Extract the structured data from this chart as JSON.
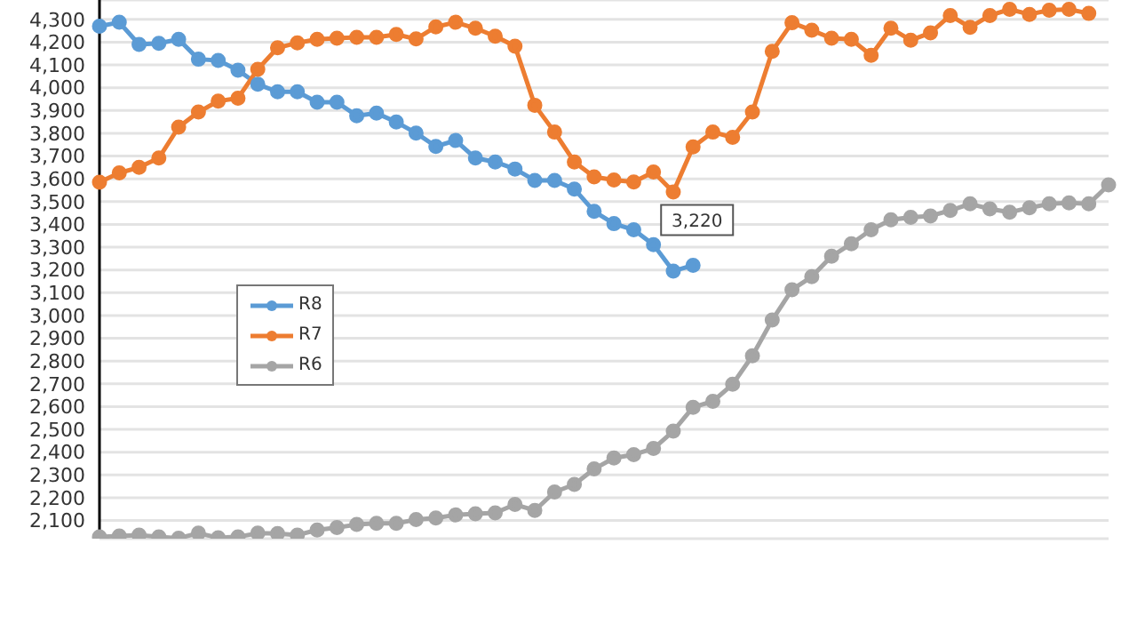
{
  "chart_data": {
    "type": "line",
    "categories": [
      null,
      null,
      null,
      null,
      null,
      null,
      null,
      null,
      null,
      null,
      null,
      null,
      null,
      null,
      null,
      null,
      null,
      null,
      null,
      null,
      null,
      null,
      null,
      null,
      null,
      null,
      null,
      null,
      null,
      null,
      null,
      null,
      null,
      null,
      null,
      null,
      null,
      null,
      null,
      null,
      null,
      null,
      null,
      null,
      null,
      null,
      null,
      null,
      null,
      null,
      null,
      null
    ],
    "series": [
      {
        "name": "R8",
        "color": "#5b9bd5",
        "values": [
          4270,
          4287,
          4190,
          4195,
          4212,
          4125,
          4120,
          4077,
          4015,
          3982,
          3982,
          3936,
          3936,
          3877,
          3888,
          3849,
          3801,
          3742,
          3768,
          3691,
          3674,
          3643,
          3593,
          3593,
          3555,
          3457,
          3403,
          3376,
          3311,
          3195,
          3220,
          null,
          null,
          null,
          null,
          null,
          null,
          null,
          null,
          null,
          null,
          null,
          null,
          null,
          null,
          null,
          null,
          null,
          null,
          null,
          null,
          null
        ]
      },
      {
        "name": "R7",
        "color": "#ed7d31",
        "values": [
          3585,
          3626,
          3650,
          3691,
          3827,
          3893,
          3941,
          3954,
          4081,
          4175,
          4197,
          4212,
          4217,
          4221,
          4221,
          4234,
          4214,
          4267,
          4287,
          4261,
          4226,
          4182,
          3923,
          3805,
          3674,
          3608,
          3595,
          3586,
          3630,
          3542,
          3740,
          3805,
          3782,
          3893,
          4160,
          4285,
          4252,
          4217,
          4212,
          4142,
          4261,
          4208,
          4241,
          4317,
          4265,
          4317,
          4344,
          4322,
          4340,
          4344,
          4326,
          null
        ]
      },
      {
        "name": "R6",
        "color": "#a5a5a5",
        "values": [
          2028,
          2032,
          2036,
          2028,
          2022,
          2044,
          2024,
          2028,
          2044,
          2042,
          2036,
          2058,
          2069,
          2082,
          2087,
          2087,
          2104,
          2111,
          2124,
          2129,
          2133,
          2170,
          2144,
          2225,
          2258,
          2326,
          2374,
          2389,
          2416,
          2492,
          2597,
          2623,
          2698,
          2823,
          2980,
          3113,
          3170,
          3260,
          3315,
          3376,
          3420,
          3431,
          3437,
          3461,
          3490,
          3468,
          3453,
          3473,
          3490,
          3494,
          3490,
          3573
        ]
      }
    ],
    "ylim": [
      2020,
      4385
    ],
    "yticks": [
      {
        "value": 2100,
        "label": "2,100"
      },
      {
        "value": 2200,
        "label": "2,200"
      },
      {
        "value": 2300,
        "label": "2,300"
      },
      {
        "value": 2400,
        "label": "2,400"
      },
      {
        "value": 2500,
        "label": "2,500"
      },
      {
        "value": 2600,
        "label": "2,600"
      },
      {
        "value": 2700,
        "label": "2,700"
      },
      {
        "value": 2800,
        "label": "2,800"
      },
      {
        "value": 2900,
        "label": "2,900"
      },
      {
        "value": 3000,
        "label": "3,000"
      },
      {
        "value": 3100,
        "label": "3,100"
      },
      {
        "value": 3200,
        "label": "3,200"
      },
      {
        "value": 3300,
        "label": "3,300"
      },
      {
        "value": 3400,
        "label": "3,400"
      },
      {
        "value": 3500,
        "label": "3,500"
      },
      {
        "value": 3600,
        "label": "3,600"
      },
      {
        "value": 3700,
        "label": "3,700"
      },
      {
        "value": 3800,
        "label": "3,800"
      },
      {
        "value": 3900,
        "label": "3,900"
      },
      {
        "value": 4000,
        "label": "4,000"
      },
      {
        "value": 4100,
        "label": "4,100"
      },
      {
        "value": 4200,
        "label": "4,200"
      },
      {
        "value": 4300,
        "label": "4,300"
      }
    ],
    "grid": "y",
    "legend": "left",
    "marker": "circle",
    "line_style": "solid",
    "tick_labels": "y",
    "annotations": [
      {
        "text": "3,220",
        "y": 3220
      }
    ]
  }
}
